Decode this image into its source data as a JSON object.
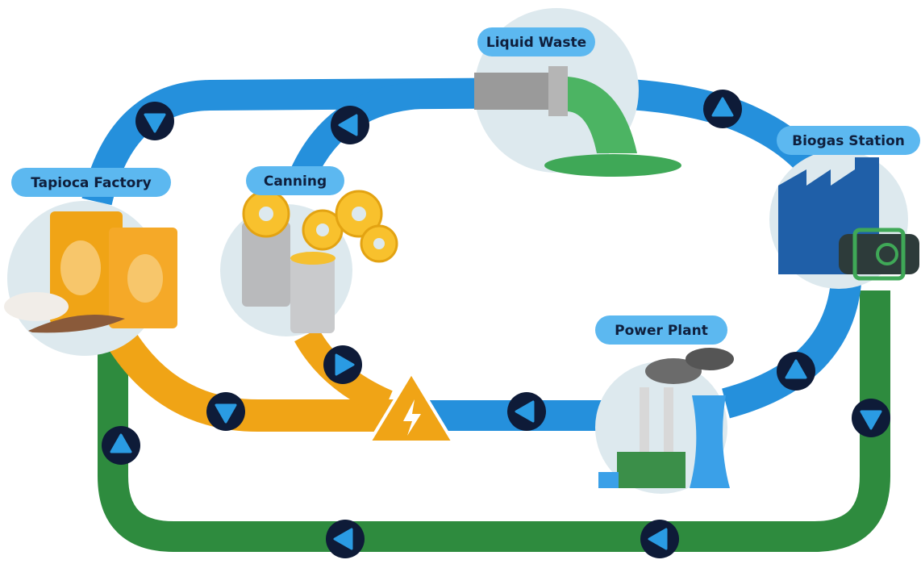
{
  "nodes": [
    {
      "label": "Liquid Waste"
    },
    {
      "label": "Biogas Station"
    },
    {
      "label": "Tapioca Factory"
    },
    {
      "label": "Canning"
    },
    {
      "label": "Power Plant"
    }
  ]
}
